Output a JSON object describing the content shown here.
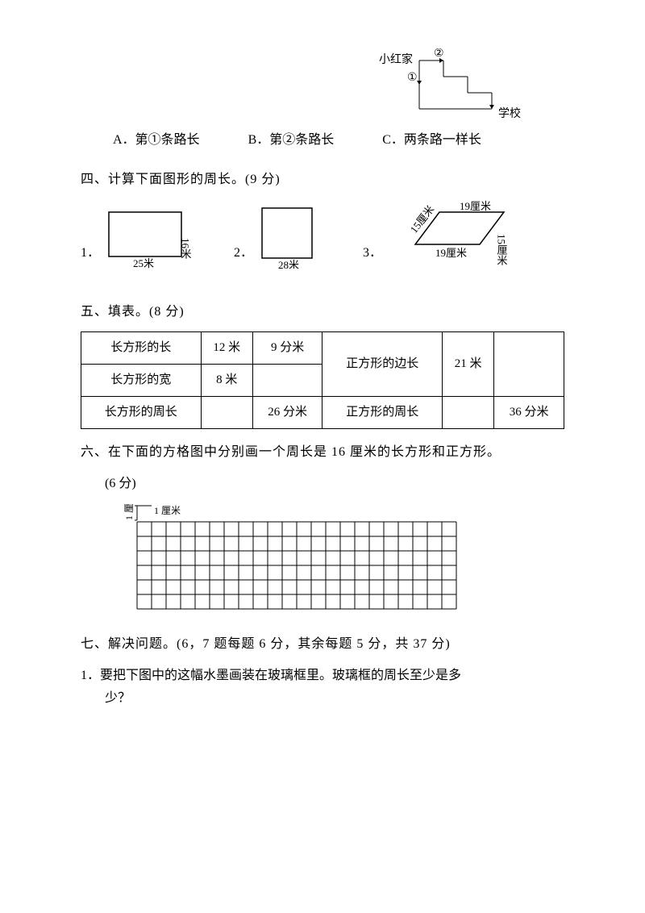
{
  "topDiagram": {
    "home": "小红家",
    "school": "学校",
    "markTop": "②",
    "markLeft": "①"
  },
  "options": {
    "a": "A．第①条路长",
    "b": "B．第②条路长",
    "c": "C．两条路一样长"
  },
  "section4": {
    "title": "四、计算下面图形的周长。(9 分)",
    "item1": "1．",
    "item2": "2．",
    "item3": "3．",
    "rect1": {
      "w": "25米",
      "h": "16米"
    },
    "rect2": {
      "w": "28米"
    },
    "para": {
      "top": "19厘米",
      "left": "15厘米",
      "right": "15厘米",
      "bottom": "19厘米"
    }
  },
  "section5": {
    "title": "五、填表。(8 分)",
    "rows": {
      "r1c1": "长方形的长",
      "r1c2": "12 米",
      "r1c3": "9 分米",
      "r2c1": "长方形的宽",
      "r2c2": "8 米",
      "r2c3": "",
      "r3c1": "长方形的周长",
      "r3c2": "",
      "r3c3": "26 分米",
      "rSq1": "正方形的边长",
      "rSq1b": "21 米",
      "rSq1c": "",
      "rSq2": "正方形的周长",
      "rSq2b": "",
      "rSq2c": "36 分米"
    }
  },
  "section6": {
    "title": "六、在下面的方格图中分别画一个周长是 16 厘米的长方形和正方形。",
    "points": "(6 分)",
    "gridLabelTop": "1 厘米",
    "gridLabelLeft": "1 厘米",
    "grid": {
      "cols": 22,
      "rows": 6,
      "cell": 18
    }
  },
  "section7": {
    "title": "七、解决问题。(6，7 题每题 6 分，其余每题 5 分，共 37 分)",
    "q1": "1．要把下图中的这幅水墨画装在玻璃框里。玻璃框的周长至少是多",
    "q1b": "少？"
  },
  "colors": {
    "line": "#000000",
    "bg": "#ffffff"
  }
}
